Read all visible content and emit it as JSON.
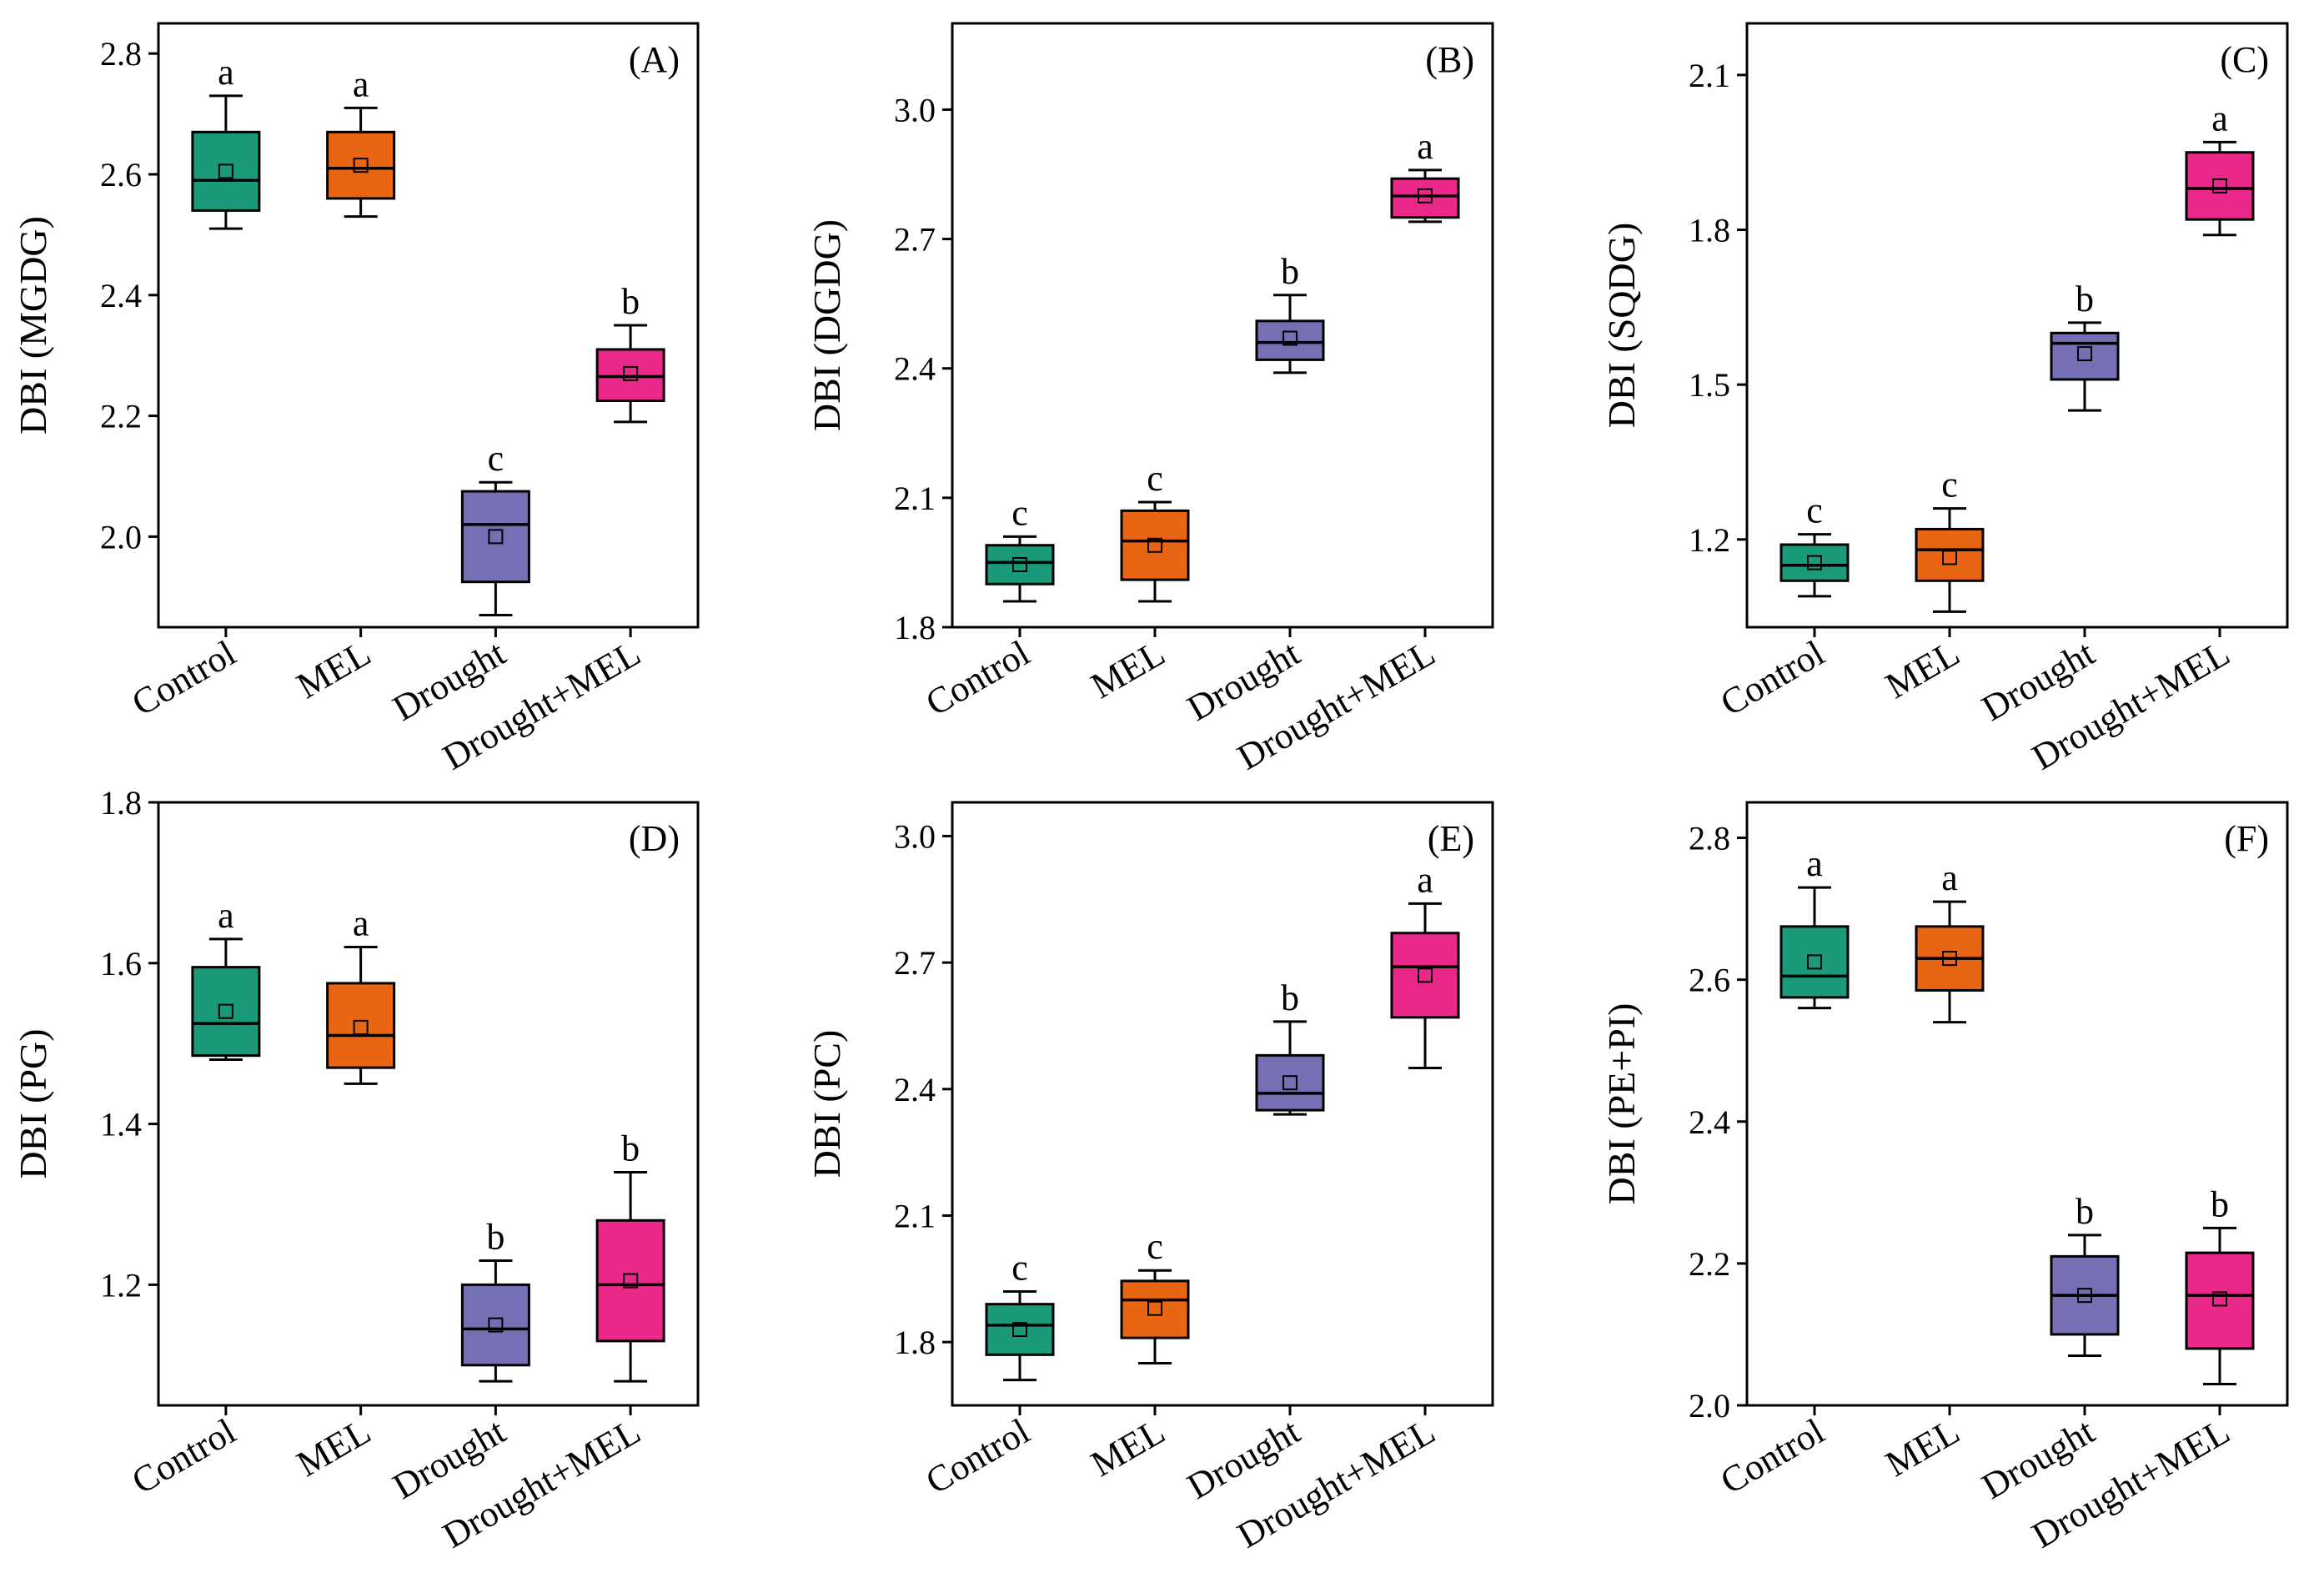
{
  "chart_data": [
    {
      "panel": "(A)",
      "type": "box",
      "ylabel": "DBI (MGDG)",
      "categories": [
        "Control",
        "MEL",
        "Drought",
        "Drought+MEL"
      ],
      "ylim": [
        1.85,
        2.85
      ],
      "yticks": [
        2.0,
        2.2,
        2.4,
        2.6,
        2.8
      ],
      "tick_format": 1,
      "boxes": [
        {
          "category": "Control",
          "min": 2.51,
          "q1": 2.54,
          "median": 2.59,
          "q3": 2.67,
          "max": 2.73,
          "mean": 2.605,
          "letter": "a"
        },
        {
          "category": "MEL",
          "min": 2.53,
          "q1": 2.56,
          "median": 2.61,
          "q3": 2.67,
          "max": 2.71,
          "mean": 2.615,
          "letter": "a"
        },
        {
          "category": "Drought",
          "min": 1.87,
          "q1": 1.925,
          "median": 2.02,
          "q3": 2.075,
          "max": 2.09,
          "mean": 2.0,
          "letter": "c"
        },
        {
          "category": "Drought+MEL",
          "min": 2.19,
          "q1": 2.225,
          "median": 2.265,
          "q3": 2.31,
          "max": 2.35,
          "mean": 2.27,
          "letter": "b"
        }
      ]
    },
    {
      "panel": "(B)",
      "type": "box",
      "ylabel": "DBI (DGDG)",
      "categories": [
        "Control",
        "MEL",
        "Drought",
        "Drought+MEL"
      ],
      "ylim": [
        1.8,
        3.2
      ],
      "yticks": [
        1.8,
        2.1,
        2.4,
        2.7,
        3.0
      ],
      "tick_format": 1,
      "boxes": [
        {
          "category": "Control",
          "min": 1.86,
          "q1": 1.9,
          "median": 1.95,
          "q3": 1.99,
          "max": 2.01,
          "mean": 1.945,
          "letter": "c"
        },
        {
          "category": "MEL",
          "min": 1.86,
          "q1": 1.91,
          "median": 2.0,
          "q3": 2.07,
          "max": 2.09,
          "mean": 1.99,
          "letter": "c"
        },
        {
          "category": "Drought",
          "min": 2.39,
          "q1": 2.42,
          "median": 2.46,
          "q3": 2.51,
          "max": 2.57,
          "mean": 2.47,
          "letter": "b"
        },
        {
          "category": "Drought+MEL",
          "min": 2.74,
          "q1": 2.75,
          "median": 2.8,
          "q3": 2.84,
          "max": 2.86,
          "mean": 2.8,
          "letter": "a"
        }
      ]
    },
    {
      "panel": "(C)",
      "type": "box",
      "ylabel": "DBI (SQDG)",
      "categories": [
        "Control",
        "MEL",
        "Drought",
        "Drought+MEL"
      ],
      "ylim": [
        1.03,
        2.2
      ],
      "yticks": [
        1.2,
        1.5,
        1.8,
        2.1
      ],
      "tick_format": 1,
      "boxes": [
        {
          "category": "Control",
          "min": 1.09,
          "q1": 1.12,
          "median": 1.15,
          "q3": 1.19,
          "max": 1.21,
          "mean": 1.155,
          "letter": "c"
        },
        {
          "category": "MEL",
          "min": 1.06,
          "q1": 1.12,
          "median": 1.18,
          "q3": 1.22,
          "max": 1.26,
          "mean": 1.165,
          "letter": "c"
        },
        {
          "category": "Drought",
          "min": 1.45,
          "q1": 1.51,
          "median": 1.58,
          "q3": 1.6,
          "max": 1.62,
          "mean": 1.56,
          "letter": "b"
        },
        {
          "category": "Drought+MEL",
          "min": 1.79,
          "q1": 1.82,
          "median": 1.88,
          "q3": 1.95,
          "max": 1.97,
          "mean": 1.885,
          "letter": "a"
        }
      ]
    },
    {
      "panel": "(D)",
      "type": "box",
      "ylabel": "DBI (PG)",
      "categories": [
        "Control",
        "MEL",
        "Drought",
        "Drought+MEL"
      ],
      "ylim": [
        1.05,
        1.8
      ],
      "yticks": [
        1.2,
        1.4,
        1.6,
        1.8
      ],
      "tick_format": 1,
      "boxes": [
        {
          "category": "Control",
          "min": 1.48,
          "q1": 1.485,
          "median": 1.525,
          "q3": 1.595,
          "max": 1.63,
          "mean": 1.54,
          "letter": "a"
        },
        {
          "category": "MEL",
          "min": 1.45,
          "q1": 1.47,
          "median": 1.51,
          "q3": 1.575,
          "max": 1.62,
          "mean": 1.52,
          "letter": "a"
        },
        {
          "category": "Drought",
          "min": 1.08,
          "q1": 1.1,
          "median": 1.145,
          "q3": 1.2,
          "max": 1.23,
          "mean": 1.15,
          "letter": "b"
        },
        {
          "category": "Drought+MEL",
          "min": 1.08,
          "q1": 1.13,
          "median": 1.2,
          "q3": 1.28,
          "max": 1.34,
          "mean": 1.205,
          "letter": "b"
        }
      ]
    },
    {
      "panel": "(E)",
      "type": "box",
      "ylabel": "DBI (PC)",
      "categories": [
        "Control",
        "MEL",
        "Drought",
        "Drought+MEL"
      ],
      "ylim": [
        1.65,
        3.08
      ],
      "yticks": [
        1.8,
        2.1,
        2.4,
        2.7,
        3.0
      ],
      "tick_format": 1,
      "boxes": [
        {
          "category": "Control",
          "min": 1.71,
          "q1": 1.77,
          "median": 1.84,
          "q3": 1.89,
          "max": 1.92,
          "mean": 1.83,
          "letter": "c"
        },
        {
          "category": "MEL",
          "min": 1.75,
          "q1": 1.81,
          "median": 1.9,
          "q3": 1.945,
          "max": 1.97,
          "mean": 1.88,
          "letter": "c"
        },
        {
          "category": "Drought",
          "min": 2.34,
          "q1": 2.35,
          "median": 2.39,
          "q3": 2.48,
          "max": 2.56,
          "mean": 2.415,
          "letter": "b"
        },
        {
          "category": "Drought+MEL",
          "min": 2.45,
          "q1": 2.57,
          "median": 2.69,
          "q3": 2.77,
          "max": 2.84,
          "mean": 2.67,
          "letter": "a"
        }
      ]
    },
    {
      "panel": "(F)",
      "type": "box",
      "ylabel": "DBI (PE+PI)",
      "categories": [
        "Control",
        "MEL",
        "Drought",
        "Drought+MEL"
      ],
      "ylim": [
        2.0,
        2.85
      ],
      "yticks": [
        2.0,
        2.2,
        2.4,
        2.6,
        2.8
      ],
      "tick_format": 1,
      "boxes": [
        {
          "category": "Control",
          "min": 2.56,
          "q1": 2.575,
          "median": 2.605,
          "q3": 2.675,
          "max": 2.73,
          "mean": 2.625,
          "letter": "a"
        },
        {
          "category": "MEL",
          "min": 2.54,
          "q1": 2.585,
          "median": 2.63,
          "q3": 2.675,
          "max": 2.71,
          "mean": 2.63,
          "letter": "a"
        },
        {
          "category": "Drought",
          "min": 2.07,
          "q1": 2.1,
          "median": 2.155,
          "q3": 2.21,
          "max": 2.24,
          "mean": 2.155,
          "letter": "b"
        },
        {
          "category": "Drought+MEL",
          "min": 2.03,
          "q1": 2.08,
          "median": 2.155,
          "q3": 2.215,
          "max": 2.25,
          "mean": 2.15,
          "letter": "b"
        }
      ]
    }
  ],
  "colors": {
    "Control": "#1a9a78",
    "MEL": "#e86613",
    "Drought": "#7570b3",
    "Drought+MEL": "#e9288a"
  }
}
